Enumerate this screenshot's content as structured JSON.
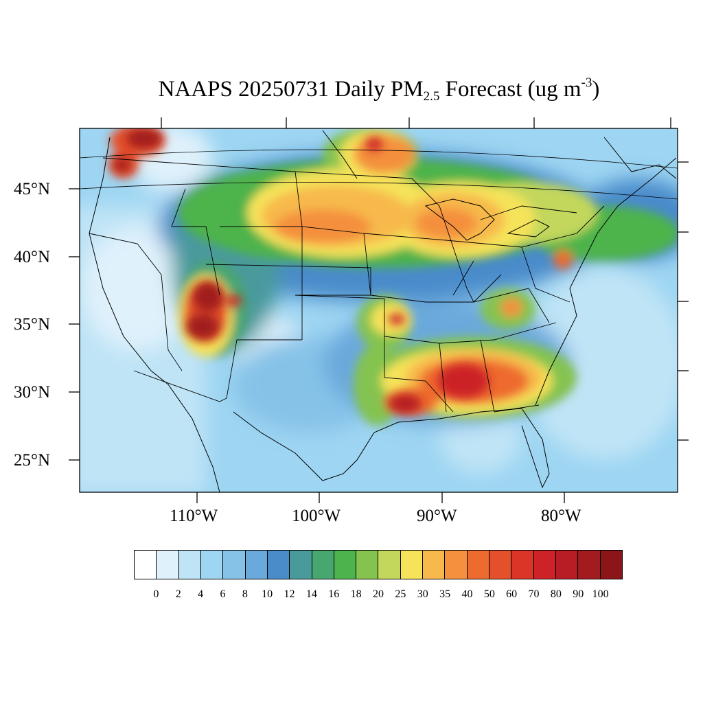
{
  "title": {
    "prefix": "NAAPS 20250731 Daily PM",
    "sub": "2.5",
    "middle": " Forecast (ug m",
    "sup": "-3",
    "suffix": ")"
  },
  "lat_labels": [
    "45°N",
    "40°N",
    "35°N",
    "30°N",
    "25°N"
  ],
  "lon_labels": [
    "110°W",
    "100°W",
    "90°W",
    "80°W"
  ],
  "colorbar": {
    "ticks": [
      "0",
      "2",
      "4",
      "6",
      "8",
      "10",
      "12",
      "14",
      "16",
      "18",
      "20",
      "25",
      "30",
      "35",
      "40",
      "50",
      "60",
      "70",
      "80",
      "90",
      "100"
    ],
    "colors": [
      "#ffffff",
      "#dff1fb",
      "#bfe4f6",
      "#9dd5f2",
      "#86c2e8",
      "#6aa9dc",
      "#4a8bca",
      "#4a9a9c",
      "#48a66f",
      "#4db34c",
      "#84c34f",
      "#c2d75b",
      "#f5e35a",
      "#f7b94c",
      "#f4903e",
      "#ee6b2f",
      "#e4502b",
      "#da3527",
      "#cc2228",
      "#b81d24",
      "#a11b1f",
      "#8b1519"
    ]
  },
  "icons": [
    "map-plume",
    "coastline",
    "state-border"
  ]
}
